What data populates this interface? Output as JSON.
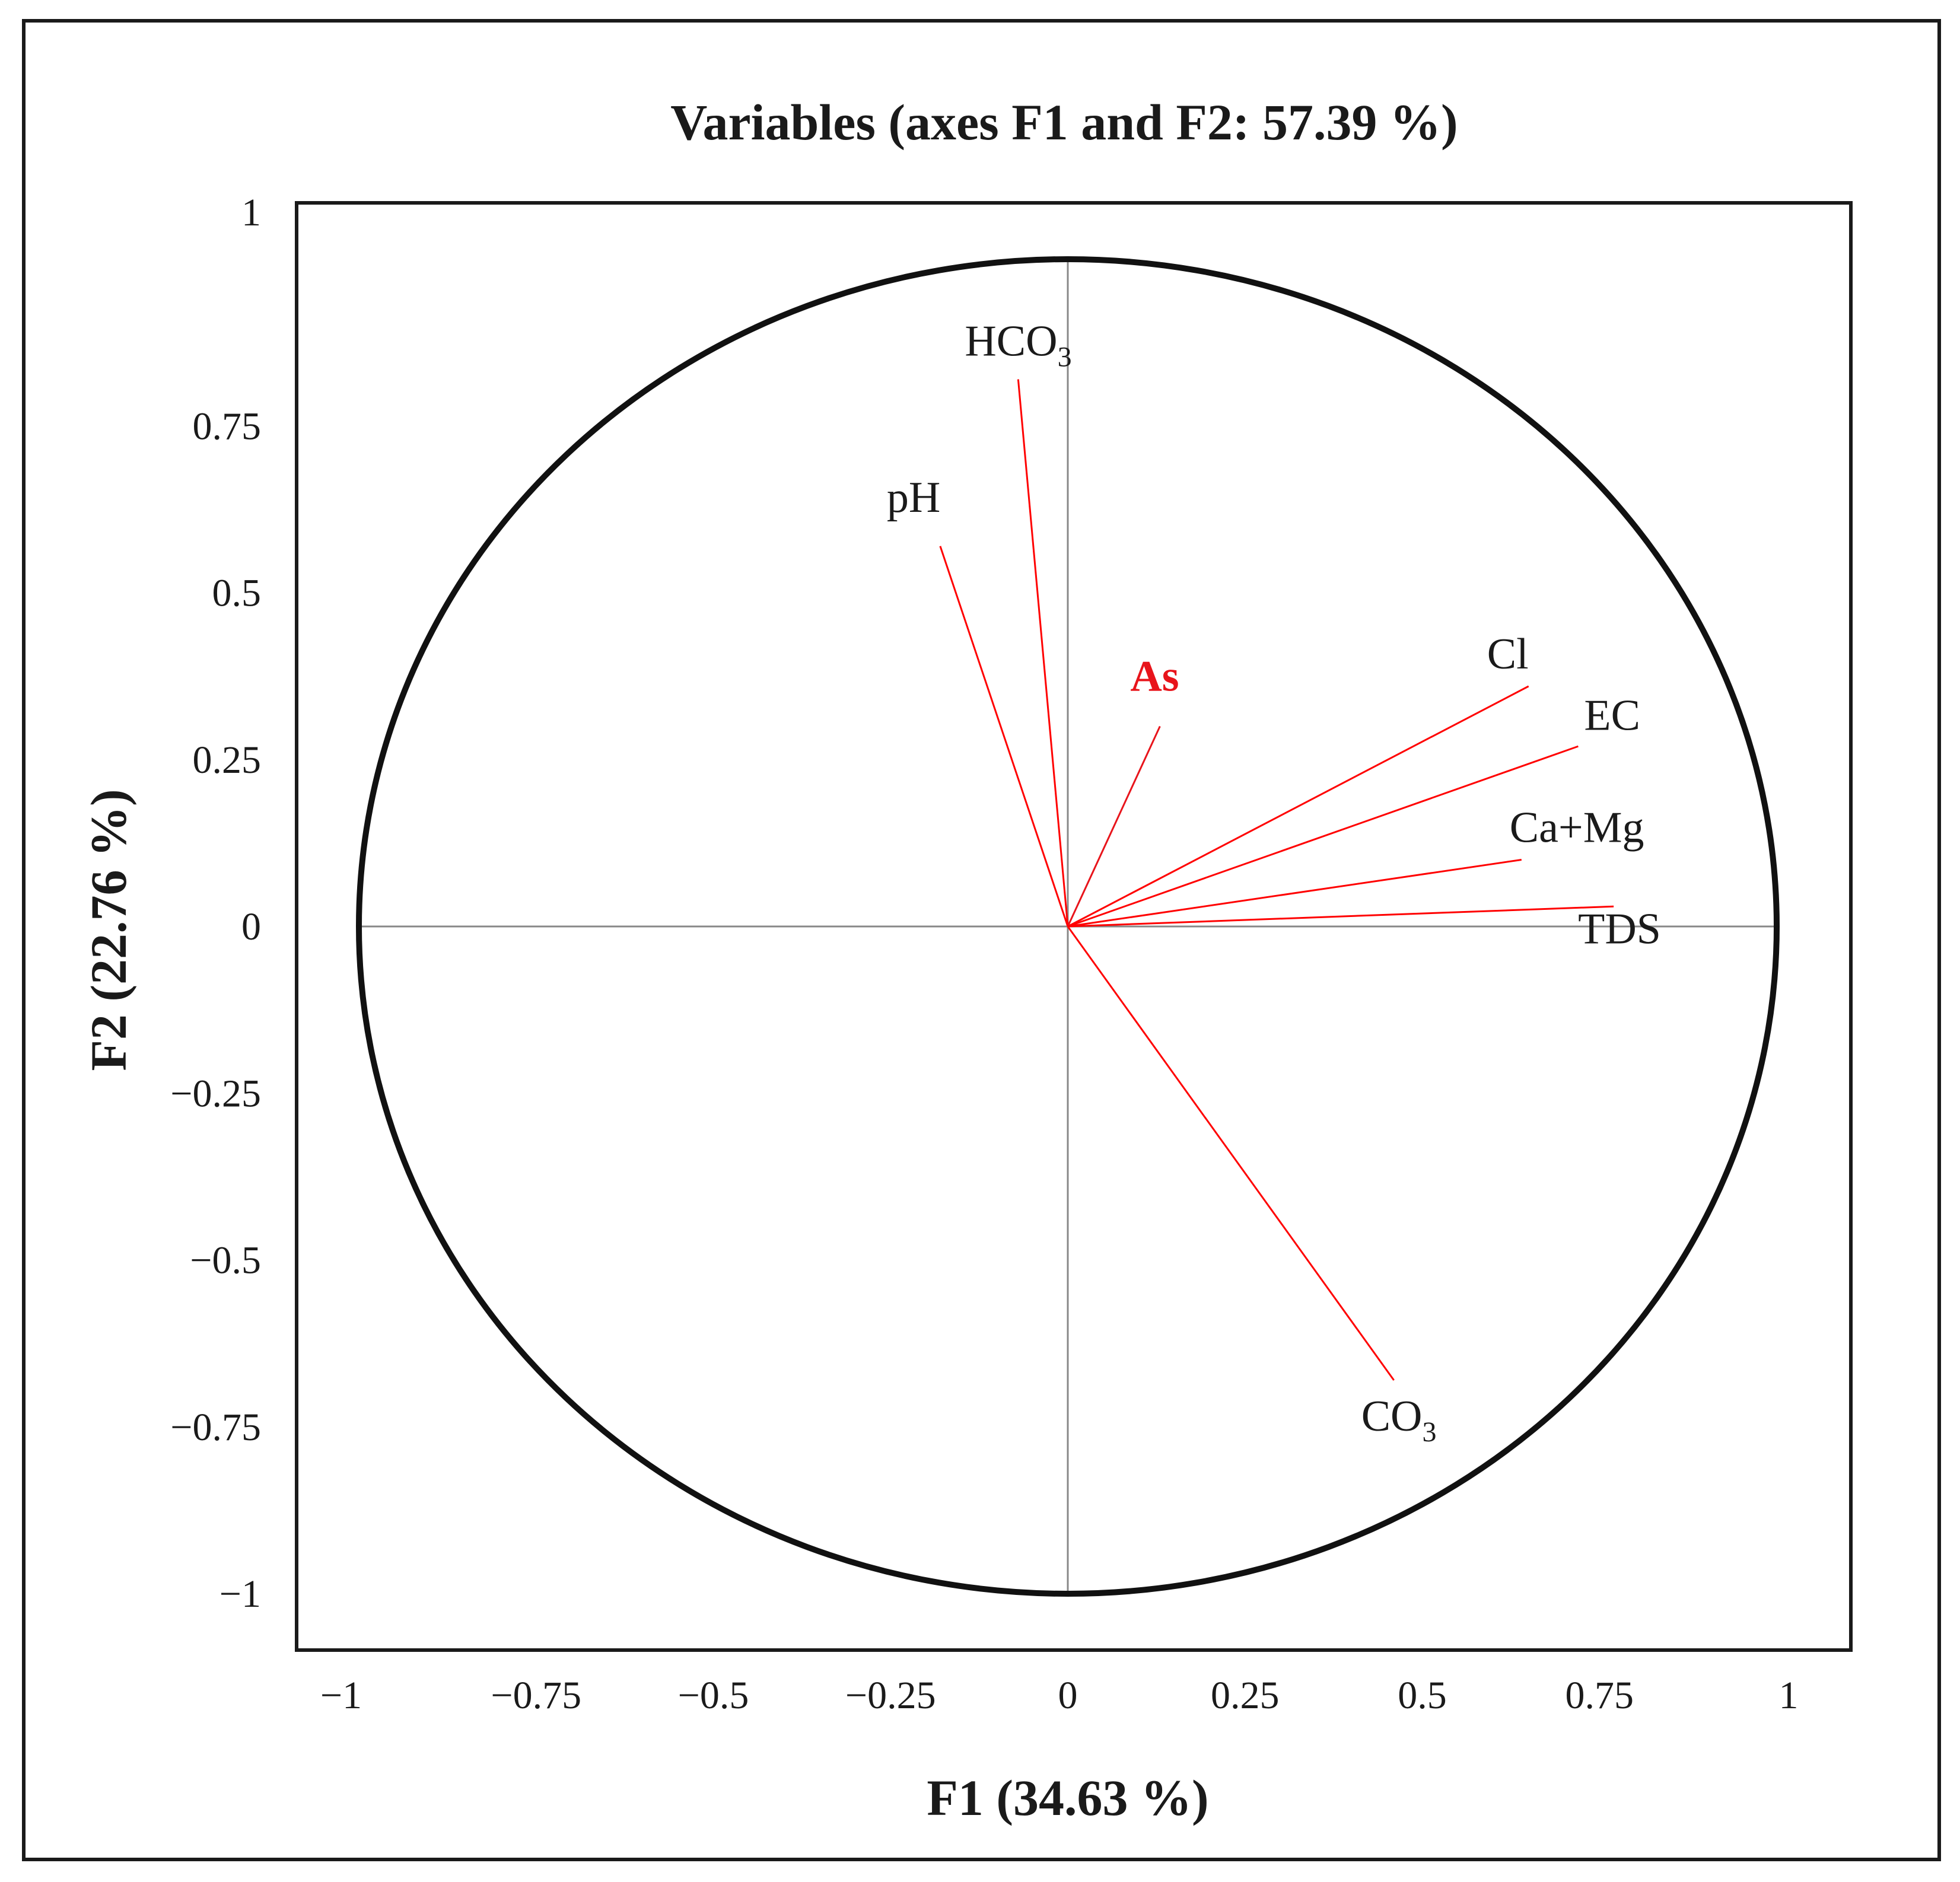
{
  "chart_data": {
    "type": "scatter",
    "subtype": "pca-correlation-circle",
    "title": "Variables (axes F1 and F2: 57.39 %)",
    "xlabel": "F1 (34.63 %)",
    "ylabel": "F2 (22.76 %)",
    "xlim": [
      -1,
      1
    ],
    "ylim": [
      -1,
      1
    ],
    "xticks": [
      "−1",
      "−0.75",
      "−0.5",
      "−0.25",
      "0",
      "0.25",
      "0.5",
      "0.75",
      "1"
    ],
    "yticks": [
      "1",
      "0.75",
      "0.5",
      "0.25",
      "0",
      "−0.25",
      "−0.5",
      "−0.75",
      "−1"
    ],
    "xtick_values": [
      -1,
      -0.75,
      -0.5,
      -0.25,
      0,
      0.25,
      0.5,
      0.75,
      1
    ],
    "ytick_values": [
      1,
      0.75,
      0.5,
      0.25,
      0,
      -0.25,
      -0.5,
      -0.75,
      -1
    ],
    "circle_radius": 1,
    "grid": false,
    "vector_color": "#ff0000",
    "highlight_color": "#e8141b",
    "variables": [
      {
        "name": "HCO",
        "sub": "3",
        "x": -0.07,
        "y": 0.82,
        "highlight": false
      },
      {
        "name": "pH",
        "sub": "",
        "x": -0.18,
        "y": 0.57,
        "highlight": false
      },
      {
        "name": "As",
        "sub": "",
        "x": 0.13,
        "y": 0.3,
        "highlight": true
      },
      {
        "name": "Cl",
        "sub": "",
        "x": 0.65,
        "y": 0.36,
        "highlight": false
      },
      {
        "name": "EC",
        "sub": "",
        "x": 0.72,
        "y": 0.27,
        "highlight": false
      },
      {
        "name": "Ca+Mg",
        "sub": "",
        "x": 0.64,
        "y": 0.1,
        "highlight": false
      },
      {
        "name": "TDS",
        "sub": "",
        "x": 0.77,
        "y": 0.03,
        "highlight": false
      },
      {
        "name": "CO",
        "sub": "3",
        "x": 0.46,
        "y": -0.68,
        "highlight": false
      }
    ]
  }
}
